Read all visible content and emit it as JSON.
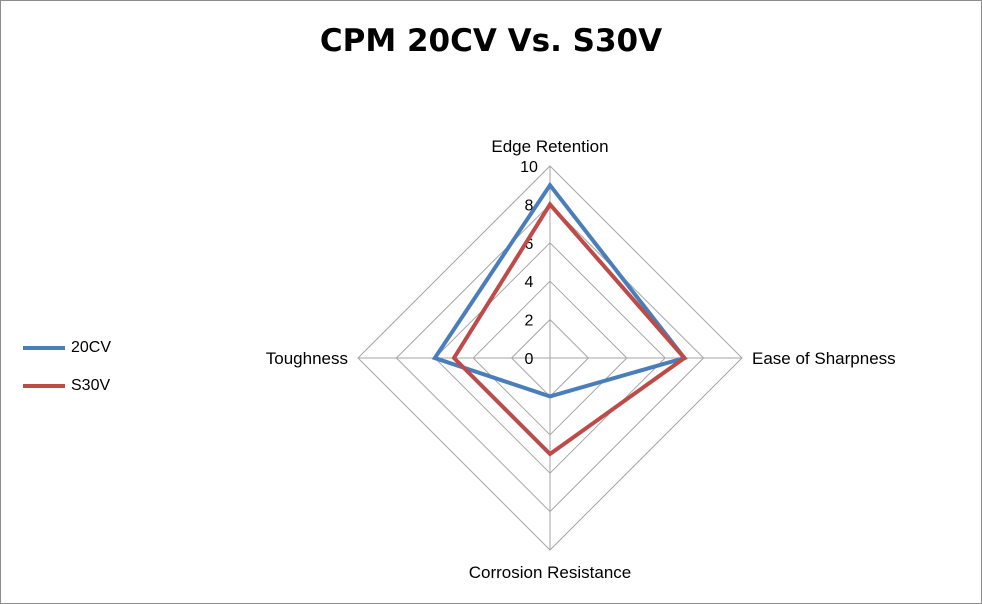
{
  "chart_data": {
    "type": "radar",
    "title": "CPM 20CV Vs. S30V",
    "categories": [
      "Edge Retention",
      "Ease of Sharpness",
      "Corrosion Resistance",
      "Toughness"
    ],
    "series": [
      {
        "name": "20CV",
        "color": "#4a7ebb",
        "values": [
          9,
          7,
          2,
          6
        ]
      },
      {
        "name": "S30V",
        "color": "#be4b48",
        "values": [
          8,
          7,
          5,
          5
        ]
      }
    ],
    "rlim": [
      0,
      10
    ],
    "ticks": [
      0,
      2,
      4,
      6,
      8,
      10
    ],
    "tick_labels": [
      "0",
      "2",
      "4",
      "6",
      "8",
      "10"
    ],
    "grid": true,
    "legend": "left"
  }
}
